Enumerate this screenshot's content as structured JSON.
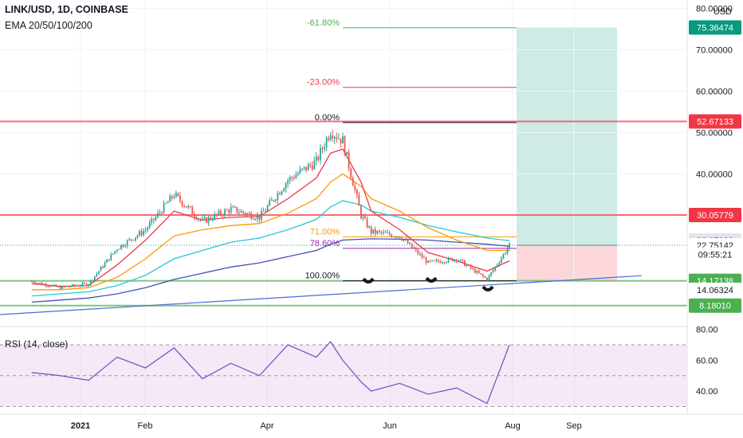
{
  "header": {
    "symbol_line": "LINK/USD, 1D, COINBASE",
    "indicators_line": "EMA 20/50/100/200"
  },
  "price_scale": {
    "currency": "USD",
    "ticks": [
      "80.00000",
      "70.00000",
      "60.00000",
      "50.00000",
      "40.00000",
      "30.00000"
    ]
  },
  "time_axis": {
    "ticks": [
      "2021",
      "Feb",
      "Apr",
      "Jun",
      "Aug",
      "Sep"
    ]
  },
  "fib": [
    {
      "label": "-61.80%",
      "price": 75.3,
      "color": "#4caf50"
    },
    {
      "label": "-23.00%",
      "price": 60.9,
      "color": "#f23645"
    },
    {
      "label": "0.00%",
      "price": 52.4,
      "color": "#131722"
    },
    {
      "label": "71.00%",
      "price": 24.8,
      "color": "#ff9800"
    },
    {
      "label": "78.60%",
      "price": 22.0,
      "color": "#9c27b0"
    },
    {
      "label": "100.00%",
      "price": 14.17,
      "color": "#131722"
    }
  ],
  "horizontal_levels": [
    {
      "price": 52.67133,
      "color": "#f7525f",
      "label": "52.67133"
    },
    {
      "price": 30.05779,
      "color": "#f7525f",
      "label": "30.05779"
    },
    {
      "price": 14.17138,
      "color": "#66bb6a",
      "label": "14.17138"
    },
    {
      "price": 8.1801,
      "color": "#66bb6a",
      "label": "8.18010"
    }
  ],
  "price_badges": [
    {
      "label": "75.36474",
      "price": 75.36474,
      "bg": "#089981",
      "fg": "#ffffff"
    },
    {
      "label": "52.67133",
      "price": 52.67133,
      "bg": "#f23645",
      "fg": "#ffffff"
    },
    {
      "label": "30.05779",
      "price": 30.05779,
      "bg": "#f23645",
      "fg": "#ffffff"
    },
    {
      "label": "23.87896",
      "price": 23.87896,
      "bg": "#e0e3eb",
      "fg": "#131722"
    },
    {
      "label": "22.75142",
      "price": 22.75142,
      "bg": "#ffffff",
      "fg": "#131722"
    },
    {
      "label": "09:55:21",
      "price": 20.5,
      "bg": "#ffffff",
      "fg": "#131722"
    },
    {
      "label": "14.17138",
      "price": 14.17138,
      "bg": "#4caf50",
      "fg": "#ffffff"
    },
    {
      "label": "14.06324",
      "price": 12.0,
      "bg": "#ffffff",
      "fg": "#131722"
    },
    {
      "label": "8.18010",
      "price": 8.1801,
      "bg": "#4caf50",
      "fg": "#ffffff"
    }
  ],
  "position_tool": {
    "entry": 22.75,
    "target": 75.36474,
    "stop": 14.17
  },
  "rsi": {
    "label": "RSI (14, close)",
    "ticks": [
      "80.00",
      "60.00",
      "40.00"
    ],
    "upper": 70,
    "lower": 30,
    "last": 70
  },
  "chart_data": {
    "type": "candlestick",
    "title": "LINK/USD, 1D, COINBASE",
    "xlabel": "",
    "ylabel": "USD",
    "ylim": [
      5,
      82
    ],
    "x": [
      "2020-12-08",
      "2020-12-22",
      "2021-01-05",
      "2021-01-19",
      "2021-02-02",
      "2021-02-16",
      "2021-03-02",
      "2021-03-16",
      "2021-03-30",
      "2021-04-13",
      "2021-04-27",
      "2021-05-04",
      "2021-05-10",
      "2021-05-19",
      "2021-05-24",
      "2021-06-07",
      "2021-06-21",
      "2021-07-05",
      "2021-07-20",
      "2021-07-31"
    ],
    "close": [
      14.0,
      12.5,
      13.5,
      22.0,
      26.5,
      35.0,
      28.5,
      31.5,
      29.5,
      38.5,
      43.0,
      50.5,
      48.0,
      30.0,
      26.0,
      25.0,
      18.5,
      19.5,
      14.5,
      22.75
    ],
    "ema_20": [
      13.5,
      12.8,
      13.0,
      18.0,
      24.0,
      31.0,
      28.8,
      29.5,
      29.7,
      34.0,
      39.0,
      45.0,
      46.0,
      38.0,
      31.0,
      26.5,
      21.0,
      19.0,
      16.5,
      19.0
    ],
    "ema_50": [
      12.0,
      12.0,
      12.5,
      15.0,
      19.5,
      25.0,
      26.5,
      27.5,
      28.0,
      30.5,
      34.0,
      38.0,
      40.0,
      37.0,
      34.0,
      31.0,
      27.0,
      24.0,
      21.5,
      21.5
    ],
    "ema_100": [
      10.5,
      11.0,
      11.5,
      13.0,
      15.5,
      19.5,
      21.5,
      23.5,
      24.5,
      26.5,
      29.0,
      32.0,
      33.5,
      32.5,
      31.0,
      29.5,
      27.5,
      26.0,
      24.5,
      23.87
    ],
    "ema_200": [
      9.0,
      9.5,
      10.0,
      11.0,
      12.5,
      14.5,
      16.0,
      17.5,
      18.5,
      20.0,
      21.5,
      23.0,
      24.0,
      24.2,
      24.3,
      24.2,
      24.0,
      23.5,
      23.0,
      22.5
    ],
    "rsi_14": [
      52,
      50,
      47,
      62,
      55,
      68,
      48,
      58,
      50,
      70,
      62,
      72,
      60,
      46,
      40,
      45,
      38,
      42,
      32,
      70
    ]
  }
}
